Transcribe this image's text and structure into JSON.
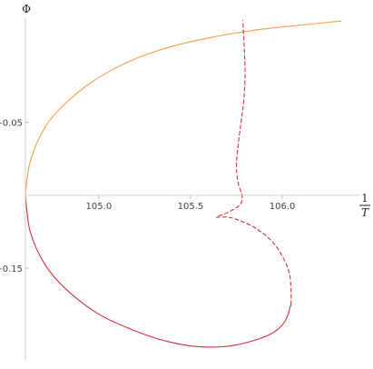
{
  "chart_data": {
    "type": "line",
    "title": "",
    "xlabel": {
      "numerator": "1",
      "denominator": "T"
    },
    "ylabel": "Φ",
    "xlim": [
      104.6,
      106.42
    ],
    "ylim": [
      -0.213,
      0.0215
    ],
    "x_axis_crossing_y": -0.1,
    "y_axis_crossing_x": 104.6,
    "x_ticks": [
      {
        "value": 105.0,
        "label": "105.0"
      },
      {
        "value": 105.5,
        "label": "105.5"
      },
      {
        "value": 106.0,
        "label": "106.0"
      }
    ],
    "y_ticks": [
      {
        "value": -0.05,
        "label": "−0.05"
      },
      {
        "value": -0.15,
        "label": "−0.15"
      }
    ],
    "grid": false,
    "legend": "none",
    "series": [
      {
        "color": "#f5a04a",
        "style": "solid",
        "points": [
          [
            104.6,
            -0.1
          ],
          [
            104.626,
            -0.077
          ],
          [
            104.704,
            -0.054
          ],
          [
            104.81,
            -0.038
          ],
          [
            104.965,
            -0.022
          ],
          [
            105.16,
            -0.0085
          ],
          [
            105.38,
            0.0015
          ],
          [
            105.6,
            0.008
          ],
          [
            105.85,
            0.0133
          ],
          [
            106.08,
            0.0165
          ],
          [
            106.32,
            0.0195
          ]
        ]
      },
      {
        "color": "#d7303c",
        "style": "solid",
        "points": [
          [
            104.6,
            -0.1
          ],
          [
            104.626,
            -0.125
          ],
          [
            104.704,
            -0.147
          ],
          [
            104.817,
            -0.164
          ],
          [
            104.992,
            -0.181
          ],
          [
            105.177,
            -0.192
          ],
          [
            105.364,
            -0.2
          ],
          [
            105.551,
            -0.204
          ],
          [
            105.737,
            -0.203
          ],
          [
            105.924,
            -0.196
          ],
          [
            106.012,
            -0.187
          ],
          [
            106.047,
            -0.175
          ]
        ]
      },
      {
        "color": "#d7303c",
        "style": "dashed",
        "points": [
          [
            106.047,
            -0.175
          ],
          [
            106.047,
            -0.163
          ],
          [
            106.03,
            -0.15
          ],
          [
            105.96,
            -0.134
          ],
          [
            105.86,
            -0.123
          ],
          [
            105.76,
            -0.117
          ],
          [
            105.7,
            -0.115
          ],
          [
            105.64,
            -0.115
          ],
          [
            105.7,
            -0.112
          ],
          [
            105.77,
            -0.1065
          ],
          [
            105.78,
            -0.1
          ],
          [
            105.76,
            -0.092
          ],
          [
            105.75,
            -0.08
          ],
          [
            105.76,
            -0.065
          ],
          [
            105.775,
            -0.05
          ],
          [
            105.79,
            -0.035
          ],
          [
            105.797,
            -0.018
          ],
          [
            105.794,
            -0.003
          ],
          [
            105.79,
            0.008
          ],
          [
            105.785,
            0.02
          ]
        ]
      }
    ]
  }
}
